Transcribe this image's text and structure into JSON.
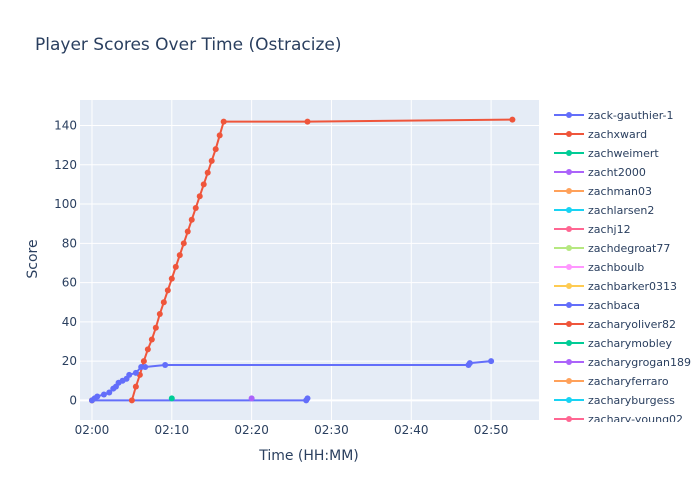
{
  "chart_data": {
    "type": "line",
    "title": "Player Scores Over Time (Ostracize)",
    "xlabel": "Time (HH:MM)",
    "ylabel": "Score",
    "xlim": [
      "01:58:30",
      "02:56:00"
    ],
    "ylim": [
      -10,
      153
    ],
    "x_ticks": [
      "02:00",
      "02:10",
      "02:20",
      "02:30",
      "02:40",
      "02:50"
    ],
    "y_ticks": [
      0,
      20,
      40,
      60,
      80,
      100,
      120,
      140
    ],
    "grid": true,
    "legend_position": "right",
    "plot_background": "#e5ecf6",
    "series": [
      {
        "name": "zack-gauthier-1",
        "color": "#636efa",
        "points": [
          [
            "02:00:00",
            0
          ],
          [
            "02:00:20",
            1
          ],
          [
            "02:00:40",
            2
          ],
          [
            "02:01:30",
            3
          ],
          [
            "02:02:10",
            4
          ],
          [
            "02:02:40",
            6
          ],
          [
            "02:03:00",
            7
          ],
          [
            "02:03:20",
            9
          ],
          [
            "02:03:50",
            10
          ],
          [
            "02:04:20",
            11
          ],
          [
            "02:04:40",
            13
          ],
          [
            "02:05:30",
            14
          ],
          [
            "02:06:10",
            17
          ],
          [
            "02:06:40",
            17
          ],
          [
            "02:09:10",
            18
          ],
          [
            "02:47:10",
            18
          ],
          [
            "02:47:20",
            19
          ],
          [
            "02:50:00",
            20
          ]
        ]
      },
      {
        "name": "zachxward",
        "color": "#ef553b",
        "points": [
          [
            "02:05:00",
            0
          ],
          [
            "02:05:30",
            7
          ],
          [
            "02:06:00",
            13
          ],
          [
            "02:06:30",
            20
          ],
          [
            "02:07:00",
            26
          ],
          [
            "02:07:30",
            31
          ],
          [
            "02:08:00",
            37
          ],
          [
            "02:08:30",
            44
          ],
          [
            "02:09:00",
            50
          ],
          [
            "02:09:30",
            56
          ],
          [
            "02:10:00",
            62
          ],
          [
            "02:10:30",
            68
          ],
          [
            "02:11:00",
            74
          ],
          [
            "02:11:30",
            80
          ],
          [
            "02:12:00",
            86
          ],
          [
            "02:12:30",
            92
          ],
          [
            "02:13:00",
            98
          ],
          [
            "02:13:30",
            104
          ],
          [
            "02:14:00",
            110
          ],
          [
            "02:14:30",
            116
          ],
          [
            "02:15:00",
            122
          ],
          [
            "02:15:30",
            128
          ],
          [
            "02:16:00",
            135
          ],
          [
            "02:16:30",
            142
          ],
          [
            "02:27:00",
            142
          ],
          [
            "02:52:40",
            143
          ]
        ]
      },
      {
        "name": "zachweimert",
        "color": "#00cc96",
        "points": [
          [
            "02:10:00",
            1
          ]
        ]
      },
      {
        "name": "zacht2000",
        "color": "#ab63fa",
        "points": [
          [
            "02:20:00",
            1
          ]
        ]
      },
      {
        "name": "zachman03",
        "color": "#ffa15a",
        "points": [
          [
            "02:00:00",
            0
          ]
        ]
      },
      {
        "name": "zachlarsen2",
        "color": "#19d3f3",
        "points": []
      },
      {
        "name": "zachj12",
        "color": "#ff6692",
        "points": []
      },
      {
        "name": "zachdegroat77",
        "color": "#b6e880",
        "points": []
      },
      {
        "name": "zachboulb",
        "color": "#ff97ff",
        "points": []
      },
      {
        "name": "zachbarker0313",
        "color": "#fecb52",
        "points": [
          [
            "02:00:00",
            0
          ]
        ]
      },
      {
        "name": "zachbaca",
        "color": "#636efa",
        "points": [
          [
            "02:00:00",
            0
          ],
          [
            "02:26:50",
            0
          ],
          [
            "02:27:00",
            1
          ]
        ]
      },
      {
        "name": "zacharyoliver82",
        "color": "#ef553b",
        "points": []
      },
      {
        "name": "zacharymobley",
        "color": "#00cc96",
        "points": []
      },
      {
        "name": "zacharygrogan189",
        "color": "#ab63fa",
        "points": []
      },
      {
        "name": "zacharyferraro",
        "color": "#ffa15a",
        "points": []
      },
      {
        "name": "zacharyburgess",
        "color": "#19d3f3",
        "points": []
      },
      {
        "name": "zachary-young02",
        "color": "#ff6692",
        "points": []
      }
    ]
  }
}
